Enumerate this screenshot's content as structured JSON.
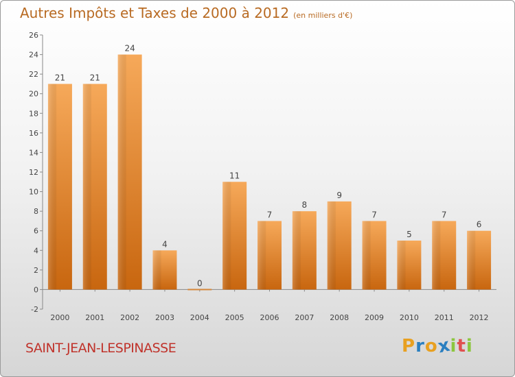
{
  "title": "Autres Impôts et Taxes de 2000 à 2012",
  "subtitle": "(en milliers d'€)",
  "commune": "SAINT-JEAN-LESPINASSE",
  "logo": {
    "letters": [
      "P",
      "r",
      "o",
      "x",
      "i",
      "t",
      "i"
    ],
    "colors": [
      "#e8a020",
      "#2a7fc0",
      "#e8a020",
      "#2a7fc0",
      "#8cc63f",
      "#e05050",
      "#8cc63f"
    ]
  },
  "colors": {
    "bar": "#e8852a",
    "title": "#b86a22",
    "commune": "#c0332b"
  },
  "chart_data": {
    "type": "bar",
    "categories": [
      "2000",
      "2001",
      "2002",
      "2003",
      "2004",
      "2005",
      "2006",
      "2007",
      "2008",
      "2009",
      "2010",
      "2011",
      "2012"
    ],
    "values": [
      21,
      21,
      24,
      4,
      0,
      11,
      7,
      8,
      9,
      7,
      5,
      7,
      6
    ],
    "data_labels": [
      "21",
      "21",
      "24",
      "4",
      "0",
      "11",
      "7",
      "8",
      "9",
      "7",
      "5",
      "7",
      "6"
    ],
    "y_ticks": [
      "-2",
      "0",
      "2",
      "4",
      "6",
      "8",
      "10",
      "12",
      "14",
      "16",
      "18",
      "20",
      "22",
      "24",
      "26"
    ],
    "ylim": [
      -2,
      26
    ],
    "grid": false,
    "title": "Autres Impôts et Taxes de 2000 à 2012",
    "xlabel": "",
    "ylabel": ""
  }
}
